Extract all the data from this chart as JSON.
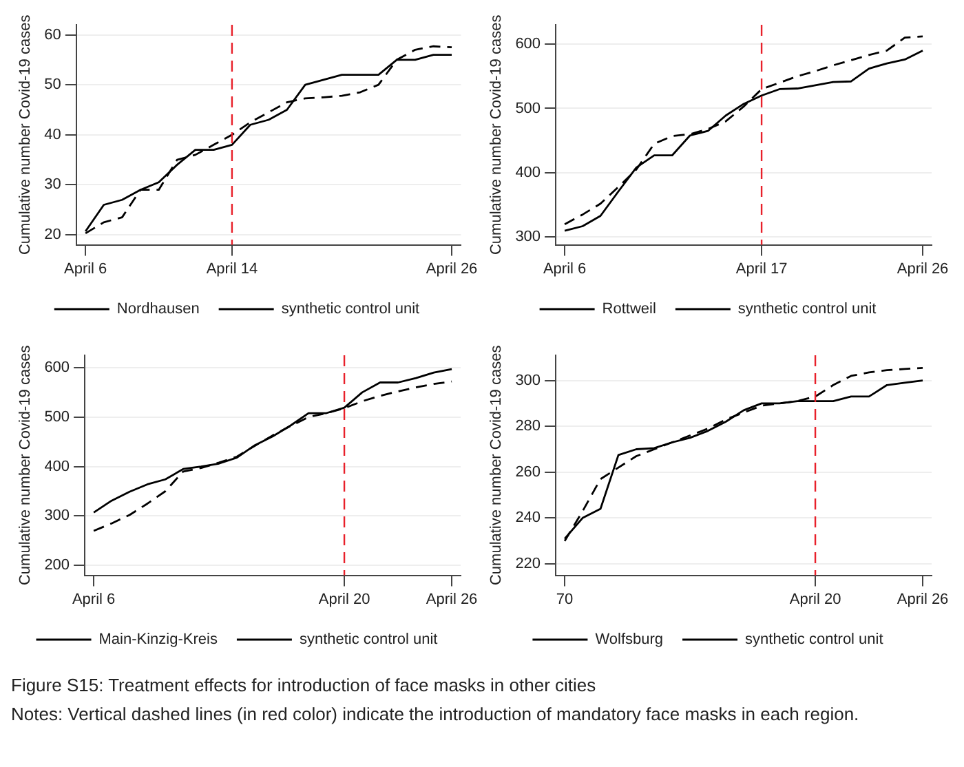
{
  "chart_data": [
    {
      "type": "line",
      "ylabel": "Cumulative number Covid-19 cases",
      "categories": [
        "April 6",
        null,
        null,
        null,
        null,
        null,
        null,
        null,
        "April 14",
        null,
        null,
        null,
        null,
        null,
        null,
        null,
        null,
        null,
        null,
        null,
        "April 26"
      ],
      "ylim": [
        18,
        62
      ],
      "yticks": [
        20,
        30,
        40,
        50,
        60
      ],
      "grid": "y",
      "legend": "bottom",
      "marker": "none",
      "series": [
        {
          "name": "Nordhausen",
          "color": "#000000",
          "line_style": "solid",
          "values": [
            20.7,
            26,
            27,
            29,
            30.5,
            34,
            37,
            37,
            38,
            42,
            43,
            45,
            50,
            51,
            52,
            52,
            52,
            55,
            55,
            56,
            56
          ]
        },
        {
          "name": "synthetic control unit",
          "color": "#000000",
          "line_style": "dashed",
          "values": [
            20.3,
            22.5,
            23.5,
            29,
            29,
            35,
            36,
            38,
            40,
            42.5,
            44.5,
            46.5,
            47.3,
            47.5,
            47.8,
            48.5,
            50,
            55,
            57,
            57.7,
            57.5
          ]
        }
      ],
      "ref_lines": [
        {
          "axis": "x",
          "value": "April 14",
          "color": "#e8202a",
          "line_style": "dashed"
        }
      ],
      "annotations": [
        "Figure S15: Treatment effects for introduction of face masks in other cities",
        "Notes: Vertical dashed lines (in red color) indicate the introduction of mandatory face masks in each region."
      ]
    },
    {
      "type": "line",
      "ylabel": "Cumulative number Covid-19 cases",
      "categories": [
        "April 6",
        null,
        null,
        null,
        null,
        null,
        null,
        null,
        null,
        null,
        null,
        "April 17",
        null,
        null,
        null,
        null,
        null,
        null,
        null,
        null,
        "April 26"
      ],
      "ylim": [
        288,
        630
      ],
      "yticks": [
        300,
        400,
        500,
        600
      ],
      "grid": "y",
      "legend": "bottom",
      "marker": "none",
      "series": [
        {
          "name": "Rottweil",
          "color": "#000000",
          "line_style": "solid",
          "values": [
            310,
            317,
            333,
            371,
            408,
            427,
            427,
            458,
            465,
            489,
            507,
            520,
            530,
            531,
            536,
            541,
            542,
            562,
            570,
            576,
            590
          ]
        },
        {
          "name": "synthetic control unit",
          "color": "#000000",
          "line_style": "dashed",
          "values": [
            320,
            335,
            352,
            378,
            405,
            445,
            457,
            460,
            468,
            480,
            503,
            530,
            540,
            550,
            558,
            567,
            575,
            583,
            590,
            610,
            612
          ]
        }
      ],
      "ref_lines": [
        {
          "axis": "x",
          "value": "April 17",
          "color": "#e8202a",
          "line_style": "dashed"
        }
      ]
    },
    {
      "type": "line",
      "ylabel": "Cumulative number Covid-19 cases",
      "categories": [
        "April 6",
        null,
        null,
        null,
        null,
        null,
        null,
        null,
        null,
        null,
        null,
        null,
        null,
        null,
        "April 20",
        null,
        null,
        null,
        null,
        null,
        "April 26"
      ],
      "ylim": [
        180,
        625
      ],
      "yticks": [
        200,
        300,
        400,
        500,
        600
      ],
      "grid": "y",
      "legend": "bottom",
      "marker": "none",
      "series": [
        {
          "name": "Main-Kinzig-Kreis",
          "color": "#000000",
          "line_style": "solid",
          "values": [
            307,
            331,
            349,
            364,
            374,
            395,
            400,
            406,
            418,
            443,
            461,
            483,
            508,
            508,
            519,
            550,
            570,
            570,
            579,
            590,
            597
          ]
        },
        {
          "name": "synthetic control unit",
          "color": "#000000",
          "line_style": "dashed",
          "values": [
            270,
            285,
            302,
            325,
            350,
            390,
            397,
            408,
            420,
            442,
            463,
            482,
            500,
            508,
            518,
            532,
            543,
            552,
            560,
            567,
            572
          ]
        }
      ],
      "ref_lines": [
        {
          "axis": "x",
          "value": "April 20",
          "color": "#e8202a",
          "line_style": "dashed"
        }
      ]
    },
    {
      "type": "line",
      "ylabel": "Cumulative number Covid-19 cases",
      "categories": [
        "70",
        null,
        null,
        null,
        null,
        null,
        null,
        null,
        null,
        null,
        null,
        null,
        null,
        null,
        "April 20",
        null,
        null,
        null,
        null,
        null,
        "April 26"
      ],
      "ylim": [
        215,
        311
      ],
      "yticks": [
        220,
        240,
        260,
        280,
        300
      ],
      "grid": "y",
      "legend": "bottom",
      "marker": "none",
      "series": [
        {
          "name": "Wolfsburg",
          "color": "#000000",
          "line_style": "solid",
          "values": [
            231,
            240,
            244,
            267.5,
            270,
            270.5,
            273,
            275,
            278,
            282,
            287,
            290,
            290,
            291,
            291,
            291,
            293,
            293,
            298,
            299,
            300
          ]
        },
        {
          "name": "synthetic control unit",
          "color": "#000000",
          "line_style": "dashed",
          "values": [
            230,
            243,
            257,
            262,
            267,
            270,
            273,
            276,
            279,
            283,
            286,
            289,
            290,
            291,
            293,
            298,
            302,
            303.5,
            304.5,
            305,
            305.5
          ]
        }
      ],
      "ref_lines": [
        {
          "axis": "x",
          "value": "April 20",
          "color": "#e8202a",
          "line_style": "dashed"
        }
      ]
    }
  ]
}
